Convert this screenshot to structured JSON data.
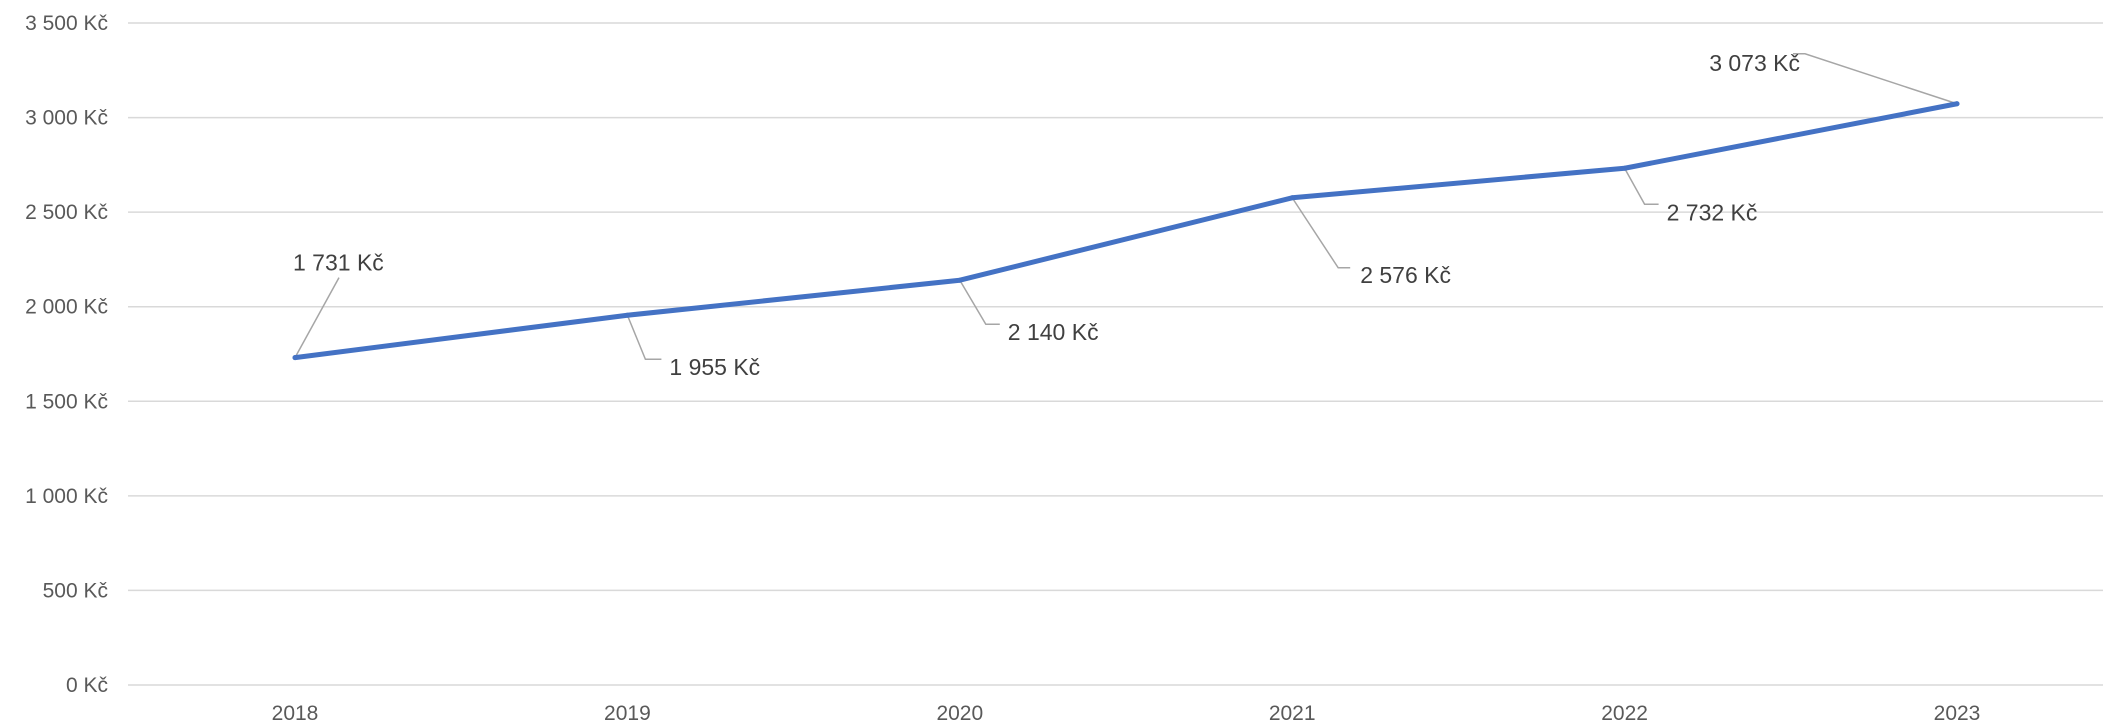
{
  "chart_data": {
    "type": "line",
    "title": "",
    "xlabel": "",
    "ylabel": "",
    "categories": [
      "2018",
      "2019",
      "2020",
      "2021",
      "2022",
      "2023"
    ],
    "series": [
      {
        "values": [
          1731,
          1955,
          2140,
          2576,
          2732,
          3073
        ],
        "color": "#4472C4"
      }
    ],
    "data_labels": [
      "1 731 Kč",
      "1 955 Kč",
      "2 140 Kč",
      "2 576 Kč",
      "2 732 Kč",
      "3 073 Kč"
    ],
    "y_ticks": [
      0,
      500,
      1000,
      1500,
      2000,
      2500,
      3000,
      3500
    ],
    "y_tick_labels": [
      "0 Kč",
      "500 Kč",
      "1 000 Kč",
      "1 500 Kč",
      "2 000 Kč",
      "2 500 Kč",
      "3 000 Kč",
      "3 500 Kč"
    ],
    "ylim": [
      0,
      3500
    ],
    "grid": true,
    "legend": "none",
    "colors": {
      "line": "#4472C4",
      "grid": "#D9D9D9",
      "axis_text": "#595959",
      "label_text": "#404040",
      "leader": "#A6A6A6"
    }
  }
}
